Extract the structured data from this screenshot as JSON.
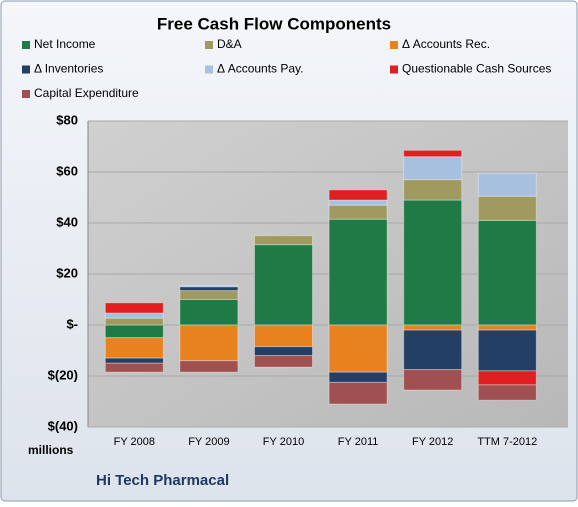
{
  "chart_data": {
    "type": "stacked_bar",
    "title": "Free Cash Flow Components",
    "categories": [
      "FY 2008",
      "FY 2009",
      "FY 2010",
      "FY 2011",
      "FY 2012",
      "TTM 7-2012"
    ],
    "series": [
      {
        "name": "Net Income",
        "color": "#1f7a45",
        "values": [
          -5,
          10,
          31.5,
          41.5,
          49,
          41
        ]
      },
      {
        "name": "D&A",
        "color": "#a09a60",
        "values": [
          2.7,
          3.5,
          3.5,
          5.5,
          8,
          9.5
        ]
      },
      {
        "name": "Δ Accounts Rec.",
        "color": "#e8821e",
        "values": [
          -8,
          -14,
          -8.5,
          -18.5,
          -2,
          -2
        ]
      },
      {
        "name": "Δ Inventories",
        "color": "#243f66",
        "values": [
          -2,
          1.5,
          -3.5,
          -4,
          -15.5,
          -16
        ]
      },
      {
        "name": "Δ Accounts Pay.",
        "color": "#a8c0e0",
        "values": [
          2,
          0.5,
          0,
          2,
          9,
          9
        ]
      },
      {
        "name": "Questionable Cash Sources",
        "color": "#e02020",
        "values": [
          4,
          0,
          0,
          4,
          2.5,
          -5.5
        ]
      },
      {
        "name": "Capital Expenditure",
        "color": "#a05050",
        "values": [
          -3.5,
          -4.5,
          -4.5,
          -8.5,
          -8,
          -6
        ]
      }
    ],
    "ylim": [
      -40,
      80
    ],
    "yticks": [
      {
        "value": 80,
        "label": "$80"
      },
      {
        "value": 60,
        "label": "$60"
      },
      {
        "value": 40,
        "label": "$40"
      },
      {
        "value": 20,
        "label": "$20"
      },
      {
        "value": 0,
        "label": "$-"
      },
      {
        "value": -20,
        "label": "$(20)"
      },
      {
        "value": -40,
        "label": "$(40)"
      }
    ],
    "y_unit": "millions",
    "company": "Hi Tech Pharmacal",
    "grid": true
  }
}
